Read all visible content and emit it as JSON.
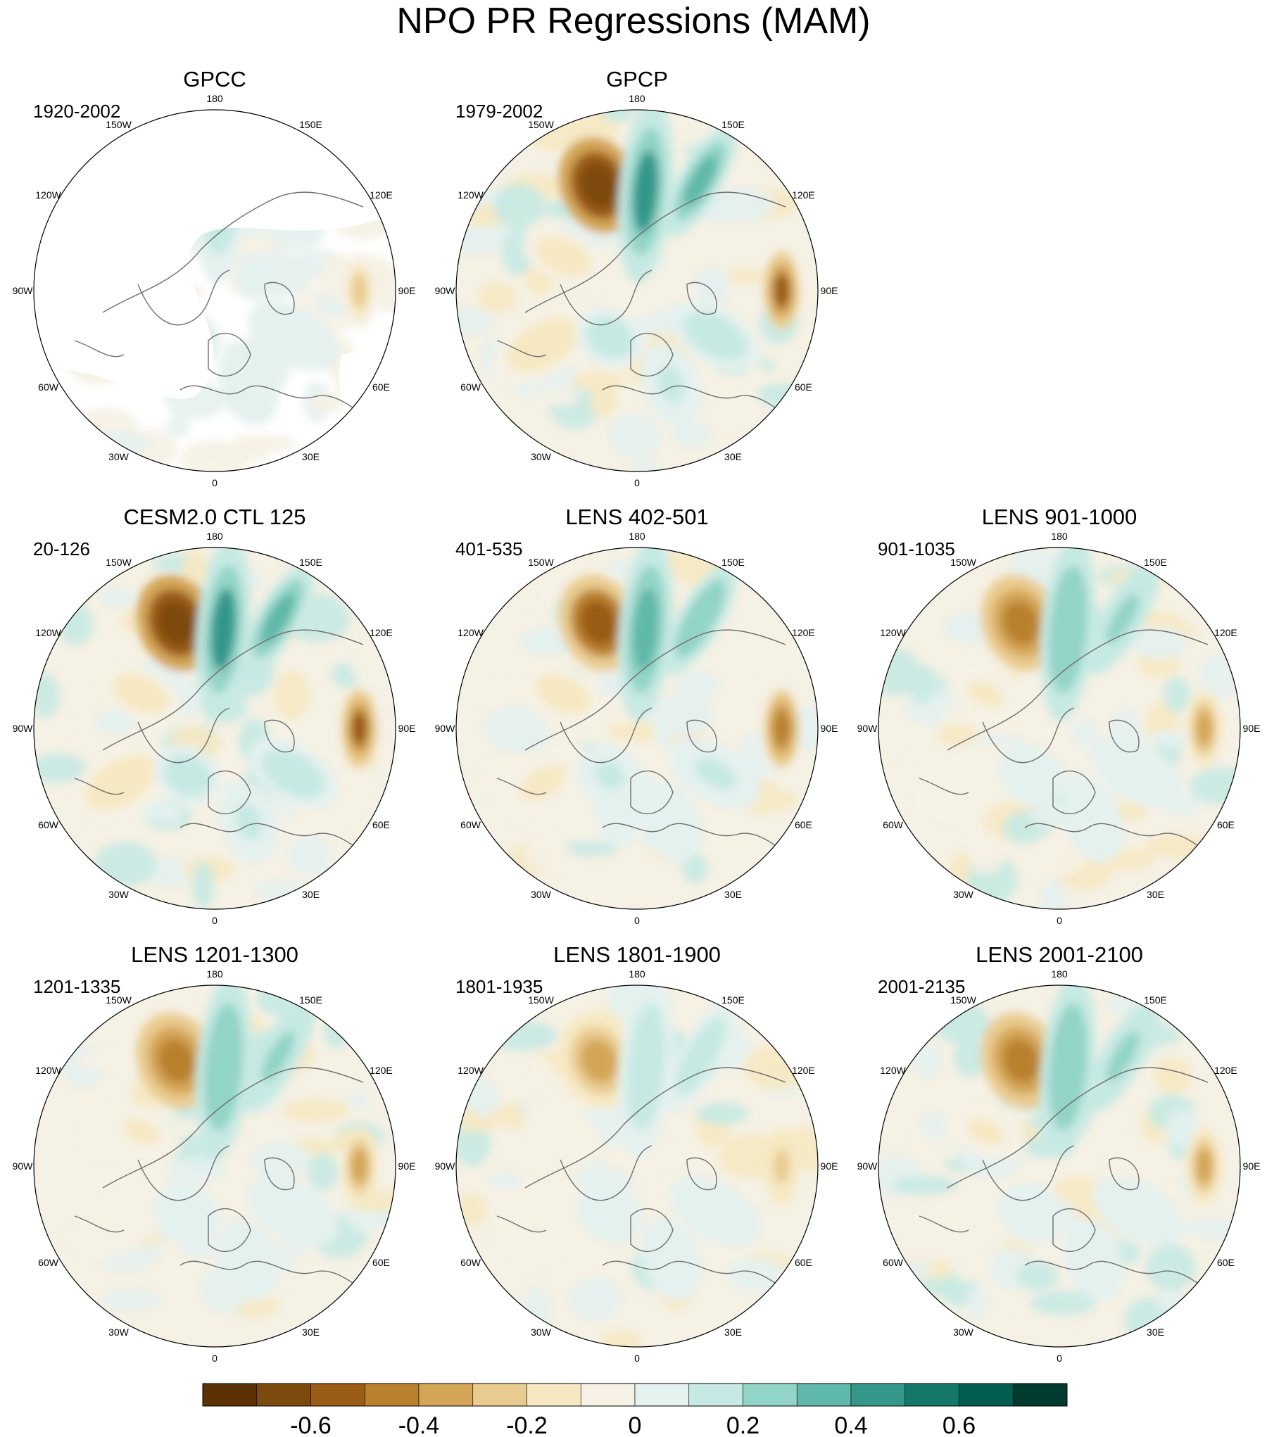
{
  "title": "NPO PR Regressions (MAM)",
  "panels": [
    {
      "title": "GPCC",
      "period": "1920-2002",
      "dataset": "obs-land",
      "missing_ocean": true
    },
    {
      "title": "GPCP",
      "period": "1979-2002",
      "dataset": "obs"
    },
    {
      "title": "CESM2.0 CTL 125",
      "period": "20-126",
      "dataset": "model"
    },
    {
      "title": "LENS 402-501",
      "period": "401-535",
      "dataset": "model"
    },
    {
      "title": "LENS 901-1000",
      "period": "901-1035",
      "dataset": "model"
    },
    {
      "title": "LENS 1201-1300",
      "period": "1201-1335",
      "dataset": "model"
    },
    {
      "title": "LENS 1801-1900",
      "period": "1801-1935",
      "dataset": "model"
    },
    {
      "title": "LENS 2001-2100",
      "period": "2001-2135",
      "dataset": "model"
    }
  ],
  "longitude_labels": [
    "180",
    "150E",
    "120E",
    "90E",
    "60E",
    "30E",
    "0",
    "30W",
    "60W",
    "90W",
    "120W",
    "150W"
  ],
  "colorbar": {
    "colors": [
      "#5b3105",
      "#7d4a0d",
      "#9a5c17",
      "#b9802e",
      "#d3a556",
      "#e9cb8f",
      "#f6e8c2",
      "#f5f1e4",
      "#e4f1ef",
      "#c6e9e3",
      "#93d4c8",
      "#5fb8a8",
      "#33978a",
      "#137868",
      "#045d4e",
      "#013a2f"
    ],
    "tick_labels": [
      "-0.6",
      "-0.4",
      "-0.2",
      "0",
      "0.2",
      "0.4",
      "0.6"
    ],
    "tick_values": [
      -0.6,
      -0.4,
      -0.2,
      0,
      0.2,
      0.4,
      0.6
    ],
    "min": -0.8,
    "max": 0.8
  },
  "colors": {
    "land_outline": "#6f6f6f",
    "map_border": "#000000"
  }
}
